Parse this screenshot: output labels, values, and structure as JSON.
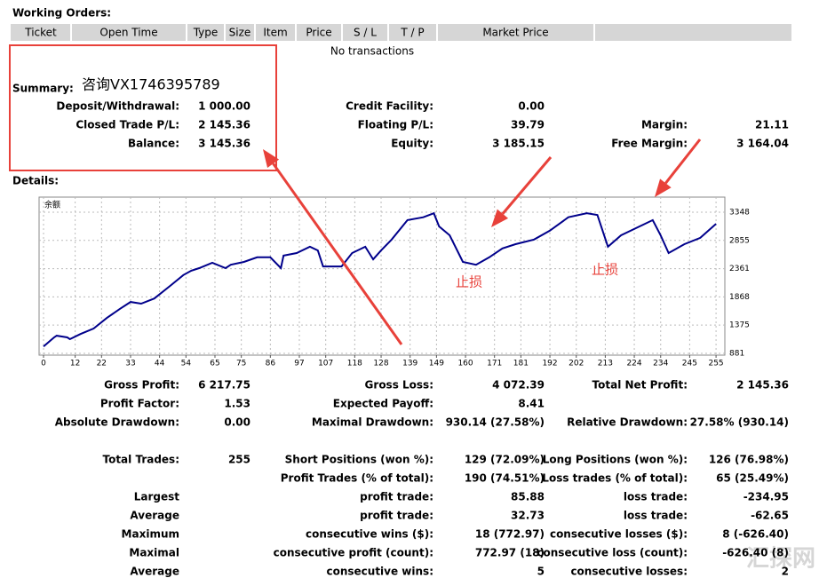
{
  "working_orders": {
    "title": "Working Orders:",
    "columns": [
      "Ticket",
      "Open Time",
      "Type",
      "Size",
      "Item",
      "Price",
      "S / L",
      "T / P",
      "Market Price"
    ],
    "empty": "No transactions"
  },
  "summary": {
    "title": "Summary:",
    "note": "咨询VX1746395789",
    "rows": [
      {
        "l1": "Deposit/Withdrawal:",
        "v1": "1 000.00",
        "l2": "Credit Facility:",
        "v2": "0.00"
      },
      {
        "l1": "Closed Trade P/L:",
        "v1": "2 145.36",
        "l2": "Floating P/L:",
        "v2": "39.79",
        "l3": "Margin:",
        "v3": "21.11"
      },
      {
        "l1": "Balance:",
        "v1": "3 145.36",
        "l2": "Equity:",
        "v2": "3 185.15",
        "l3": "Free Margin:",
        "v3": "3 164.04"
      }
    ]
  },
  "details": {
    "title": "Details:"
  },
  "chart_data": {
    "type": "line",
    "label": "余额",
    "color": "#00008b",
    "x": [
      0,
      4,
      5,
      9,
      10,
      14,
      19,
      24,
      29,
      33,
      37,
      42,
      48,
      53,
      56,
      59,
      64,
      69,
      71,
      76,
      81,
      86,
      90,
      91,
      96,
      101,
      104,
      106,
      113,
      117,
      122,
      125,
      128,
      132,
      138,
      144,
      148,
      150,
      154,
      159,
      164,
      169,
      174,
      179,
      186,
      192,
      199,
      206,
      210,
      214,
      219,
      226,
      231,
      234,
      237,
      243,
      249,
      255
    ],
    "values": [
      1000,
      1160,
      1190,
      1160,
      1130,
      1220,
      1315,
      1500,
      1660,
      1780,
      1750,
      1840,
      2060,
      2250,
      2325,
      2370,
      2465,
      2370,
      2430,
      2480,
      2560,
      2560,
      2370,
      2590,
      2635,
      2745,
      2680,
      2400,
      2400,
      2635,
      2745,
      2525,
      2680,
      2870,
      3210,
      3260,
      3330,
      3100,
      2945,
      2480,
      2430,
      2560,
      2715,
      2790,
      2870,
      3025,
      3260,
      3330,
      3300,
      2745,
      2945,
      3100,
      3210,
      2945,
      2635,
      2790,
      2900,
      3145
    ],
    "xlim": [
      0,
      258
    ],
    "xticks": [
      0,
      12,
      22,
      33,
      44,
      54,
      65,
      75,
      86,
      97,
      107,
      118,
      128,
      139,
      149,
      160,
      171,
      181,
      192,
      202,
      213,
      224,
      234,
      245,
      255
    ],
    "ylim": [
      850,
      3612
    ],
    "yticks": [
      881,
      1375,
      1868,
      2361,
      2855,
      3348
    ],
    "grid": true,
    "annotations": [
      "止损",
      "止损"
    ]
  },
  "stats": {
    "rows": [
      {
        "l1": "Gross Profit:",
        "v1": "6 217.75",
        "l2": "Gross Loss:",
        "v2": "4 072.39",
        "l3": "Total Net Profit:",
        "v3": "2 145.36"
      },
      {
        "l1": "Profit Factor:",
        "v1": "1.53",
        "l2": "Expected Payoff:",
        "v2": "8.41"
      },
      {
        "l1": "Absolute Drawdown:",
        "v1": "0.00",
        "l2": "Maximal Drawdown:",
        "v2": "930.14 (27.58%)",
        "l3": "Relative Drawdown:",
        "v3": "27.58% (930.14)"
      },
      {
        "l1": "Total Trades:",
        "v1": "255",
        "l2": "Short Positions (won %):",
        "v2": "129 (72.09%)",
        "l3": "Long Positions (won %):",
        "v3": "126 (76.98%)"
      },
      {
        "l2": "Profit Trades (% of total):",
        "v2": "190 (74.51%)",
        "l3": "Loss trades (% of total):",
        "v3": "65 (25.49%)"
      },
      {
        "l1": "Largest",
        "l2": "profit trade:",
        "v2": "85.88",
        "l3": "loss trade:",
        "v3": "-234.95"
      },
      {
        "l1": "Average",
        "l2": "profit trade:",
        "v2": "32.73",
        "l3": "loss trade:",
        "v3": "-62.65"
      },
      {
        "l1": "Maximum",
        "l2": "consecutive wins ($):",
        "v2": "18 (772.97)",
        "l3": "consecutive losses ($):",
        "v3": "8 (-626.40)"
      },
      {
        "l1": "Maximal",
        "l2": "consecutive profit (count):",
        "v2": "772.97 (18)",
        "l3": "consecutive loss (count):",
        "v3": "-626.40 (8)"
      },
      {
        "l1": "Average",
        "l2": "consecutive wins:",
        "v2": "5",
        "l3": "consecutive losses:",
        "v3": "2"
      }
    ]
  },
  "watermark": "汇探网"
}
